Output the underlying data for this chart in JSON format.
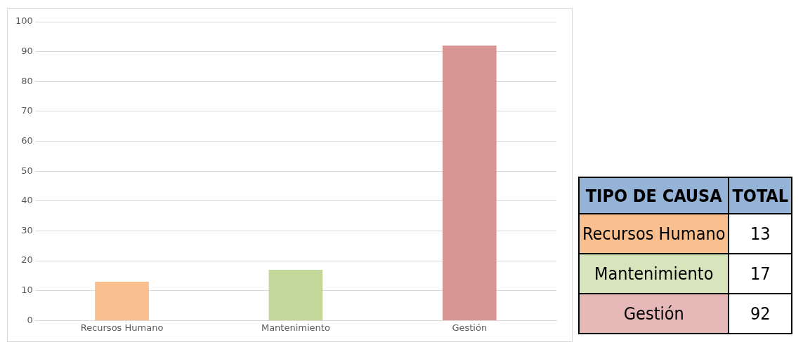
{
  "chart_data": [
    {
      "type": "bar",
      "categories": [
        "Recursos Humano",
        "Mantenimiento",
        "Gestión"
      ],
      "values": [
        13,
        17,
        92
      ],
      "colors": [
        "#f9bf8f",
        "#c4d79b",
        "#d99594"
      ],
      "ylim": [
        0,
        100
      ],
      "yticks": [
        0,
        10,
        20,
        30,
        40,
        50,
        60,
        70,
        80,
        90,
        100
      ],
      "grid": "y",
      "legend": false
    },
    {
      "type": "other",
      "annotations": [
        "TIPO DE CAUSA",
        "TOTAL",
        "Recursos Humano",
        "13",
        "Mantenimiento",
        "17",
        "Gestión",
        "92"
      ],
      "colors": [
        "#95b3d7",
        "#f9bf8f",
        "#d7e4bc",
        "#e6b9b8"
      ]
    }
  ]
}
